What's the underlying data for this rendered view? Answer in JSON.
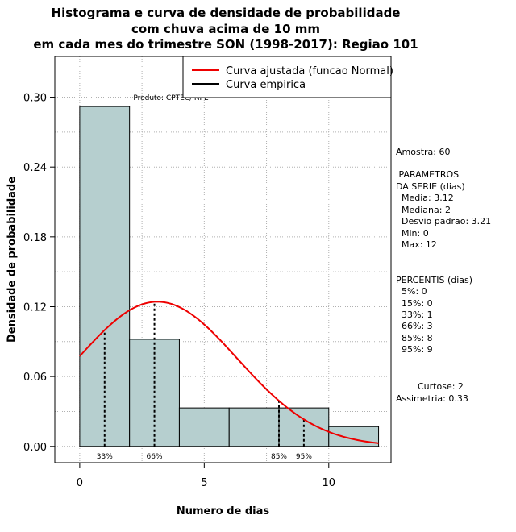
{
  "chart_data": {
    "type": "bar",
    "title": [
      "Histograma e curva de densidade de probabilidade",
      "com chuva acima de 10 mm",
      "em cada mes do trimestre SON (1998-2017): Regiao 101"
    ],
    "xlabel": "Numero de dias",
    "ylabel": "Densidade de probabilidade",
    "xlim": [
      -1,
      12.5
    ],
    "ylim": [
      -0.014,
      0.335
    ],
    "x_ticks": [
      0,
      5,
      10
    ],
    "y_ticks": [
      0.0,
      0.06,
      0.12,
      0.18,
      0.24,
      0.3
    ],
    "y_tick_labels": [
      "0.00",
      "0.06",
      "0.12",
      "0.18",
      "0.24",
      "0.30"
    ],
    "x_grid": [
      0,
      2.5,
      5,
      7.5,
      10
    ],
    "y_grid": [
      0.0,
      0.03,
      0.06,
      0.09,
      0.12,
      0.15,
      0.18,
      0.21,
      0.24,
      0.27,
      0.3
    ],
    "bins": [
      {
        "start": 0,
        "end": 2,
        "density": 0.292
      },
      {
        "start": 2,
        "end": 4,
        "density": 0.092
      },
      {
        "start": 4,
        "end": 6,
        "density": 0.033
      },
      {
        "start": 6,
        "end": 8,
        "density": 0.033
      },
      {
        "start": 8,
        "end": 10,
        "density": 0.033
      },
      {
        "start": 10,
        "end": 12,
        "density": 0.017
      }
    ],
    "bar_color": "#b6cfcf",
    "normal_fit": {
      "mean": 3.12,
      "sd": 3.21,
      "x_from": 0,
      "x_to": 12,
      "color": "#ee0000"
    },
    "percentile_lines": [
      {
        "label": "33%",
        "x": 1
      },
      {
        "label": "66%",
        "x": 3
      },
      {
        "label": "85%",
        "x": 8
      },
      {
        "label": "95%",
        "x": 9
      }
    ],
    "legend": [
      {
        "label": "Curva ajustada (funcao Normal)",
        "color": "#ee0000"
      },
      {
        "label": "Curva empirica",
        "color": "#000000"
      }
    ],
    "product_label": "Produto: CPTEC/INPE"
  },
  "stats": {
    "amostra": "Amostra: 60",
    "param_title": " PARAMETROS",
    "param_subtitle": "DA SERIE (dias)",
    "media": "  Media: 3.12",
    "mediana": "  Mediana: 2",
    "desvio": "  Desvio padrao: 3.21",
    "min": "  Min: 0",
    "max": "  Max: 12",
    "percentis_title": "PERCENTIS (dias)",
    "p5": "  5%: 0",
    "p15": "  15%: 0",
    "p33": "  33%: 1",
    "p66": "  66%: 3",
    "p85": "  85%: 8",
    "p95": "  95%: 9",
    "curtose": "Curtose: 2",
    "assimetria": "Assimetria: 0.33"
  }
}
